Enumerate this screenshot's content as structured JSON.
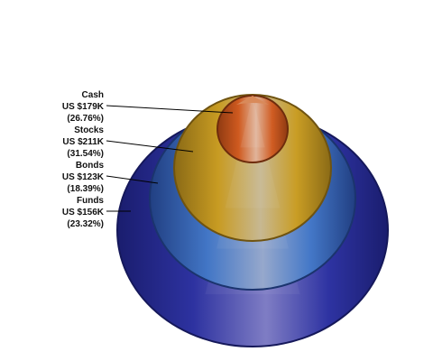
{
  "chart_data": {
    "type": "pie",
    "variant": "3d-pyramid-cone",
    "title": "",
    "segments": [
      {
        "name": "Cash",
        "value_label": "US $179K",
        "pct_label": "(26.76%)",
        "value": 179,
        "percent": 26.76,
        "color": "#c8561f"
      },
      {
        "name": "Stocks",
        "value_label": "US $211K",
        "pct_label": "(31.54%)",
        "value": 211,
        "percent": 31.54,
        "color": "#d2a52c"
      },
      {
        "name": "Bonds",
        "value_label": "US $123K",
        "pct_label": "(18.39%)",
        "value": 123,
        "percent": 18.39,
        "color": "#3d6fbf"
      },
      {
        "name": "Funds",
        "value_label": "US $156K",
        "pct_label": "(23.32%)",
        "value": 156,
        "percent": 23.32,
        "color": "#262a8c"
      }
    ]
  }
}
